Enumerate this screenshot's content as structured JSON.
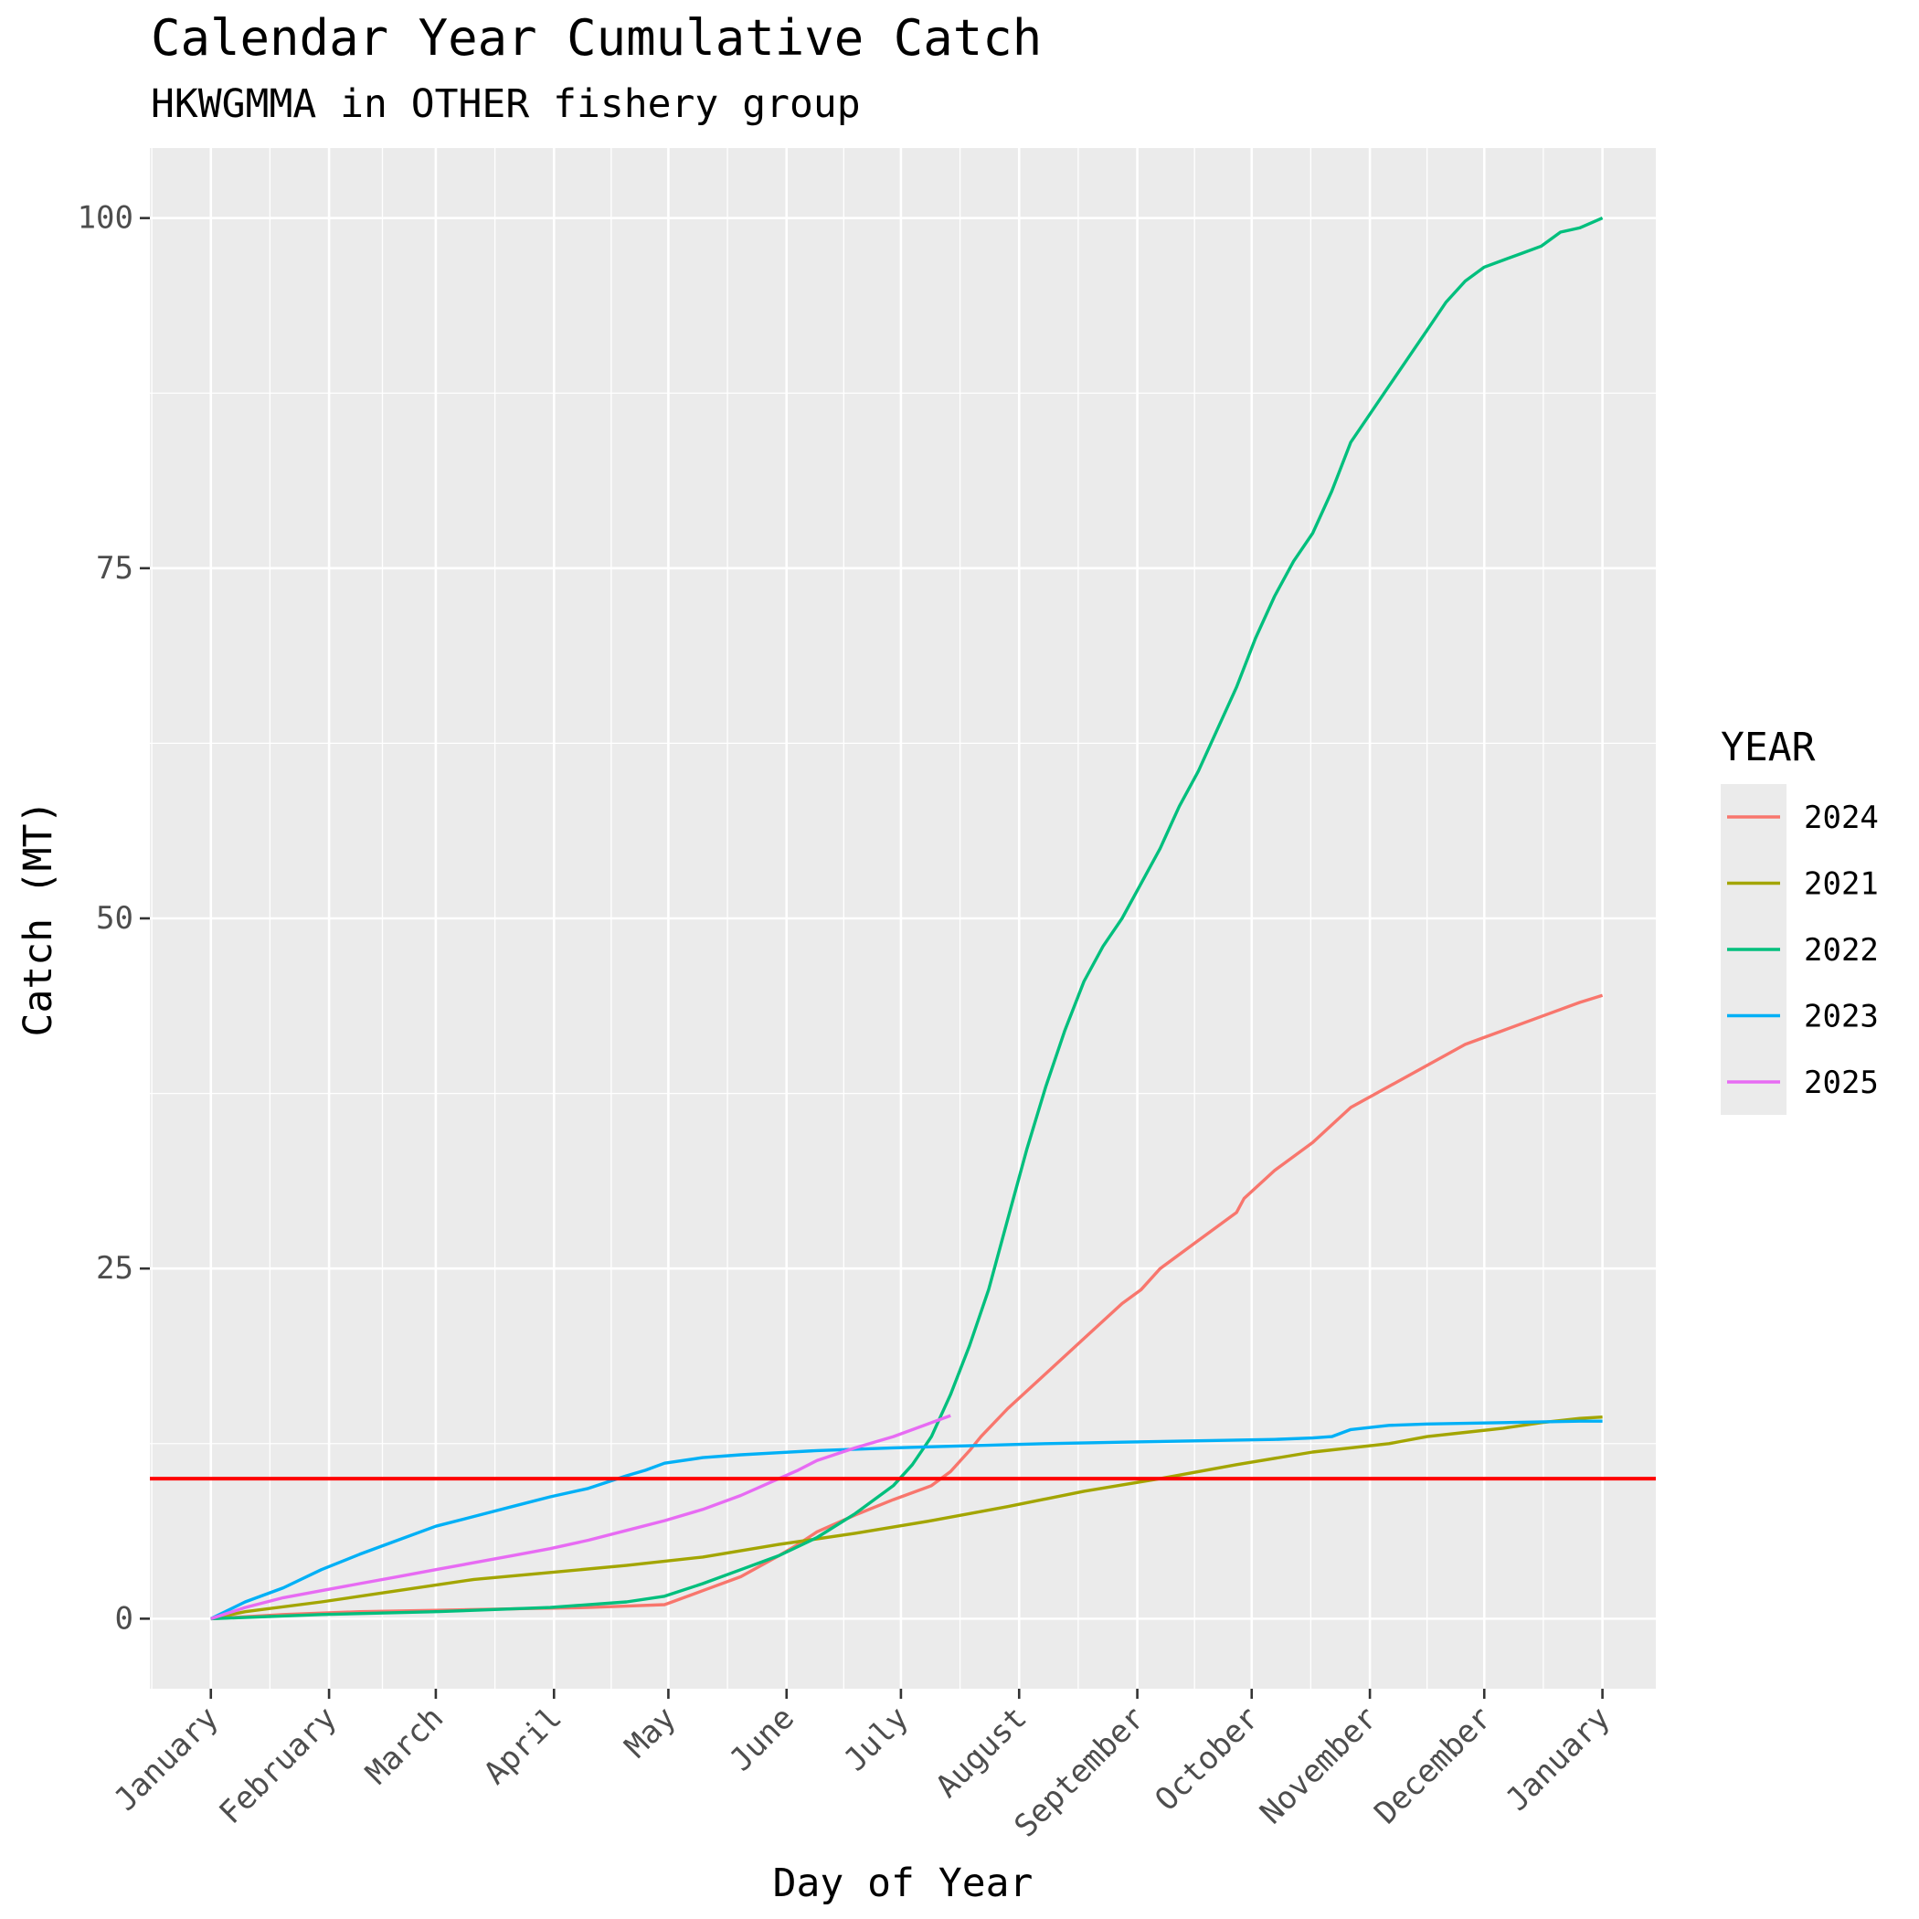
{
  "chart_data": {
    "type": "line",
    "title": "Calendar Year Cumulative Catch",
    "subtitle": "HKWGMMA in OTHER fishery group",
    "xlabel": "Day of Year",
    "ylabel": "Catch (MT)",
    "x_unit": "day of year",
    "xlim": [
      -15,
      380
    ],
    "ylim": [
      -5,
      105
    ],
    "x_ticks": [
      {
        "label": "January",
        "day": 1
      },
      {
        "label": "February",
        "day": 32
      },
      {
        "label": "March",
        "day": 60
      },
      {
        "label": "April",
        "day": 91
      },
      {
        "label": "May",
        "day": 121
      },
      {
        "label": "June",
        "day": 152
      },
      {
        "label": "July",
        "day": 182
      },
      {
        "label": "August",
        "day": 213
      },
      {
        "label": "September",
        "day": 244
      },
      {
        "label": "October",
        "day": 274
      },
      {
        "label": "November",
        "day": 305
      },
      {
        "label": "December",
        "day": 335
      },
      {
        "label": "January",
        "day": 366
      }
    ],
    "y_ticks": [
      0,
      25,
      50,
      75,
      100
    ],
    "grid": true,
    "reference_line": {
      "y": 10,
      "color": "#ff0000"
    },
    "legend": {
      "title": "YEAR",
      "position": "right"
    },
    "series": [
      {
        "name": "2024",
        "color": "#F8766D",
        "x": [
          1,
          20,
          40,
          60,
          80,
          100,
          110,
          120,
          122,
          130,
          140,
          150,
          155,
          160,
          170,
          180,
          190,
          195,
          200,
          203,
          210,
          220,
          230,
          240,
          245,
          250,
          260,
          270,
          272,
          280,
          290,
          300,
          310,
          320,
          330,
          340,
          350,
          360,
          366
        ],
        "y": [
          0,
          0.3,
          0.5,
          0.6,
          0.7,
          0.8,
          0.9,
          1.0,
          1.2,
          2.0,
          3.0,
          4.5,
          5.3,
          6.2,
          7.4,
          8.5,
          9.5,
          10.5,
          12.0,
          13.0,
          15.0,
          17.5,
          20.0,
          22.5,
          23.5,
          25.0,
          27.0,
          29.0,
          30.0,
          32.0,
          34.0,
          36.5,
          38.0,
          39.5,
          41.0,
          42.0,
          43.0,
          44.0,
          44.5
        ]
      },
      {
        "name": "2021",
        "color": "#A3A500",
        "x": [
          1,
          10,
          30,
          50,
          70,
          90,
          110,
          130,
          150,
          170,
          190,
          210,
          230,
          250,
          270,
          290,
          310,
          320,
          330,
          340,
          350,
          360,
          366
        ],
        "y": [
          0,
          0.5,
          1.2,
          2.0,
          2.8,
          3.3,
          3.8,
          4.4,
          5.3,
          6.1,
          7.0,
          8.0,
          9.1,
          10.0,
          11.0,
          11.9,
          12.5,
          13.0,
          13.3,
          13.6,
          14.0,
          14.3,
          14.4
        ]
      },
      {
        "name": "2022",
        "color": "#00BF7D",
        "x": [
          1,
          30,
          60,
          90,
          110,
          120,
          130,
          140,
          150,
          160,
          170,
          180,
          185,
          190,
          195,
          200,
          205,
          210,
          215,
          220,
          225,
          230,
          235,
          240,
          245,
          250,
          255,
          260,
          265,
          270,
          275,
          280,
          285,
          290,
          295,
          300,
          305,
          310,
          315,
          320,
          325,
          330,
          335,
          340,
          345,
          350,
          355,
          360,
          366
        ],
        "y": [
          0,
          0.3,
          0.5,
          0.8,
          1.2,
          1.6,
          2.5,
          3.5,
          4.5,
          5.8,
          7.5,
          9.5,
          11.0,
          13.0,
          16.0,
          19.5,
          23.5,
          28.5,
          33.5,
          38.0,
          42.0,
          45.5,
          48.0,
          50.0,
          52.5,
          55.0,
          58.0,
          60.5,
          63.5,
          66.5,
          70.0,
          73.0,
          75.5,
          77.5,
          80.5,
          84.0,
          86.0,
          88.0,
          90.0,
          92.0,
          94.0,
          95.5,
          96.5,
          97.0,
          97.5,
          98.0,
          99.0,
          99.3,
          100.0
        ]
      },
      {
        "name": "2023",
        "color": "#00B0F6",
        "x": [
          1,
          10,
          20,
          30,
          40,
          50,
          60,
          70,
          80,
          90,
          100,
          110,
          115,
          120,
          130,
          140,
          150,
          160,
          170,
          180,
          200,
          220,
          240,
          260,
          280,
          290,
          295,
          300,
          310,
          320,
          340,
          360,
          366
        ],
        "y": [
          0,
          1.2,
          2.2,
          3.5,
          4.6,
          5.6,
          6.6,
          7.3,
          8.0,
          8.7,
          9.3,
          10.2,
          10.6,
          11.1,
          11.5,
          11.7,
          11.85,
          12.0,
          12.1,
          12.2,
          12.35,
          12.5,
          12.6,
          12.7,
          12.8,
          12.9,
          13.0,
          13.5,
          13.8,
          13.9,
          14.0,
          14.1,
          14.1
        ]
      },
      {
        "name": "2025",
        "color": "#E76BF3",
        "x": [
          1,
          10,
          20,
          30,
          40,
          50,
          60,
          70,
          80,
          90,
          100,
          110,
          120,
          130,
          140,
          150,
          155,
          160,
          170,
          180,
          190,
          195
        ],
        "y": [
          0,
          0.8,
          1.5,
          2.0,
          2.5,
          3.0,
          3.5,
          4.0,
          4.5,
          5.0,
          5.6,
          6.3,
          7.0,
          7.8,
          8.8,
          10.0,
          10.6,
          11.3,
          12.2,
          13.0,
          14.0,
          14.5
        ]
      }
    ]
  }
}
